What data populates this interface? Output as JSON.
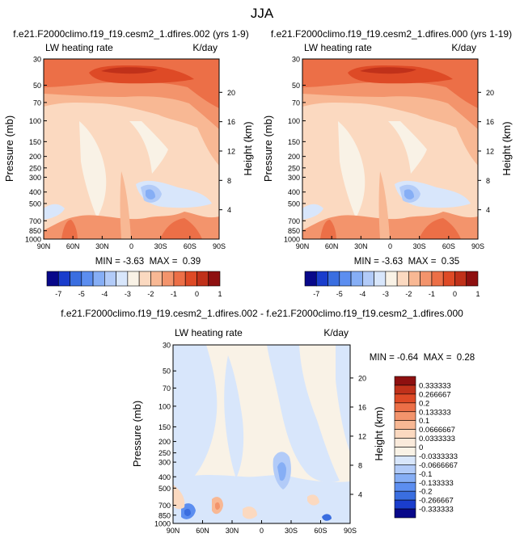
{
  "figure": {
    "title": "JJA"
  },
  "chart_data": [
    {
      "type": "heatmap",
      "title": "f.e21.F2000climo.f19_f19.cesm2_1.dfires.002 (yrs 1-9)",
      "variable_label": "LW heating rate",
      "units_label": "K/day",
      "ylabel": "Pressure (mb)",
      "ylabel_right": "Height (km)",
      "x_ticks": [
        "90N",
        "60N",
        "30N",
        "0",
        "30S",
        "60S",
        "90S"
      ],
      "x_values": [
        90,
        60,
        30,
        0,
        -30,
        -60,
        -90
      ],
      "y_ticks": [
        "30",
        "50",
        "70",
        "100",
        "150",
        "200",
        "250",
        "300",
        "400",
        "500",
        "700",
        "850",
        "1000"
      ],
      "y_values": [
        30,
        50,
        70,
        100,
        150,
        200,
        250,
        300,
        400,
        500,
        700,
        850,
        1000
      ],
      "y_scale": "log",
      "ylim": [
        30,
        1000
      ],
      "height_ticks": [
        "20",
        "16",
        "12",
        "8",
        "4"
      ],
      "height_values": [
        20,
        16,
        12,
        8,
        4
      ],
      "stats": "MIN = -3.63  MAX =  0.39",
      "colorbar": {
        "labels": [
          "-7",
          "-5",
          "-4",
          "-3",
          "-2",
          "-1",
          "0",
          "1"
        ],
        "colors": [
          "#08088a",
          "#1a3dcc",
          "#3a6ee0",
          "#5c8ef0",
          "#86aef5",
          "#b2cbf8",
          "#d8e6fb",
          "#f9f2e6",
          "#fbd9c0",
          "#f8b894",
          "#f3946c",
          "#ec6f47",
          "#de4a26",
          "#c0311a",
          "#8e1010"
        ]
      }
    },
    {
      "type": "heatmap",
      "title": "f.e21.F2000climo.f19_f19.cesm2_1.dfires.000 (yrs 1-19)",
      "variable_label": "LW heating rate",
      "units_label": "K/day",
      "ylabel": "Pressure (mb)",
      "ylabel_right": "Height (km)",
      "x_ticks": [
        "90N",
        "60N",
        "30N",
        "0",
        "30S",
        "60S",
        "90S"
      ],
      "x_values": [
        90,
        60,
        30,
        0,
        -30,
        -60,
        -90
      ],
      "y_ticks": [
        "30",
        "50",
        "70",
        "100",
        "150",
        "200",
        "250",
        "300",
        "400",
        "500",
        "700",
        "850",
        "1000"
      ],
      "y_values": [
        30,
        50,
        70,
        100,
        150,
        200,
        250,
        300,
        400,
        500,
        700,
        850,
        1000
      ],
      "y_scale": "log",
      "ylim": [
        30,
        1000
      ],
      "height_ticks": [
        "20",
        "16",
        "12",
        "8",
        "4"
      ],
      "height_values": [
        20,
        16,
        12,
        8,
        4
      ],
      "stats": "MIN = -3.63  MAX =  0.35",
      "colorbar": {
        "labels": [
          "-7",
          "-5",
          "-4",
          "-3",
          "-2",
          "-1",
          "0",
          "1"
        ],
        "colors": [
          "#08088a",
          "#1a3dcc",
          "#3a6ee0",
          "#5c8ef0",
          "#86aef5",
          "#b2cbf8",
          "#d8e6fb",
          "#f9f2e6",
          "#fbd9c0",
          "#f8b894",
          "#f3946c",
          "#ec6f47",
          "#de4a26",
          "#c0311a",
          "#8e1010"
        ]
      }
    },
    {
      "type": "heatmap",
      "title": "f.e21.F2000climo.f19_f19.cesm2_1.dfires.002 - f.e21.F2000climo.f19_f19.cesm2_1.dfires.000",
      "variable_label": "LW heating rate",
      "units_label": "K/day",
      "ylabel": "Pressure (mb)",
      "ylabel_right": "Height (km)",
      "x_ticks": [
        "90N",
        "60N",
        "30N",
        "0",
        "30S",
        "60S",
        "90S"
      ],
      "x_values": [
        90,
        60,
        30,
        0,
        -30,
        -60,
        -90
      ],
      "y_ticks": [
        "30",
        "50",
        "70",
        "100",
        "150",
        "200",
        "250",
        "300",
        "400",
        "500",
        "700",
        "850",
        "1000"
      ],
      "y_values": [
        30,
        50,
        70,
        100,
        150,
        200,
        250,
        300,
        400,
        500,
        700,
        850,
        1000
      ],
      "y_scale": "log",
      "ylim": [
        30,
        1000
      ],
      "height_ticks": [
        "20",
        "16",
        "12",
        "8",
        "4"
      ],
      "height_values": [
        20,
        16,
        12,
        8,
        4
      ],
      "stats": "MIN = -0.64  MAX =  0.28",
      "colorbar": {
        "labels": [
          "0.333333",
          "0.266667",
          "0.2",
          "0.133333",
          "0.1",
          "0.0666667",
          "0.0333333",
          "0",
          "-0.0333333",
          "-0.0666667",
          "-0.1",
          "-0.133333",
          "-0.2",
          "-0.266667",
          "-0.333333"
        ],
        "colors": [
          "#8e1010",
          "#c0311a",
          "#de4a26",
          "#ec6f47",
          "#f3946c",
          "#f8b894",
          "#fbd9c0",
          "#faeadb",
          "#f9f2e6",
          "#d8e6fb",
          "#b2cbf8",
          "#86aef5",
          "#5c8ef0",
          "#3a6ee0",
          "#1a3dcc",
          "#08088a"
        ]
      }
    }
  ]
}
